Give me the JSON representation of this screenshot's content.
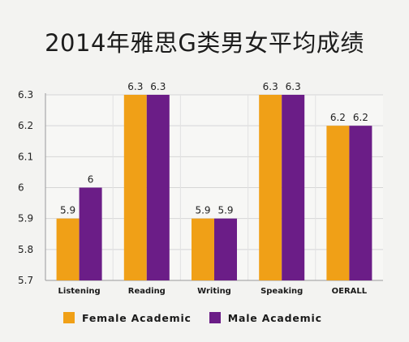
{
  "chart_data": {
    "type": "bar",
    "title": "2014年雅思G类男女平均成绩",
    "categories": [
      "Listening",
      "Reading",
      "Writing",
      "Speaking",
      "OERALL"
    ],
    "series": [
      {
        "name": "Female Academic",
        "color": "#f0a017",
        "values": [
          5.9,
          6.3,
          5.9,
          6.3,
          6.2
        ],
        "labels": [
          "5.9",
          "6.3",
          "5.9",
          "6.3",
          "6.2"
        ]
      },
      {
        "name": "Male Academic",
        "color": "#6b1d87",
        "values": [
          6.0,
          6.3,
          5.9,
          6.3,
          6.2
        ],
        "labels": [
          "6",
          "6.3",
          "5.9",
          "6.3",
          "6.2"
        ]
      }
    ],
    "ylim": [
      5.7,
      6.3
    ],
    "yticks": [
      "5.7",
      "5.8",
      "5.9",
      "6",
      "6.1",
      "6.2",
      "6.3"
    ],
    "grid": true,
    "legend_position": "bottom-left",
    "xlabel": "",
    "ylabel": ""
  }
}
